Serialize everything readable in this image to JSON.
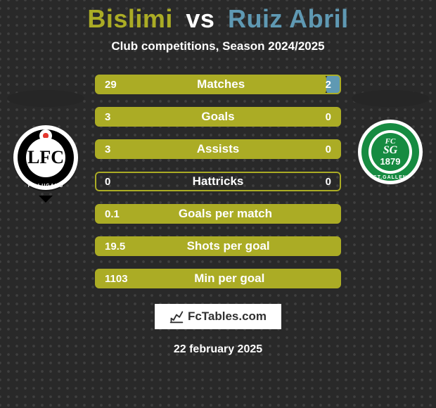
{
  "header": {
    "player1": "Bislimi",
    "vs": "vs",
    "player2": "Ruiz Abril",
    "subtitle": "Club competitions, Season 2024/2025"
  },
  "colors": {
    "player1": "#abac25",
    "player2": "#5f99b3",
    "bar_border": "#abac25",
    "background": "#292929",
    "dot": "#3f3f3f"
  },
  "club_left": {
    "name": "FC LUGANO",
    "year": "1908",
    "monogram": "LFC"
  },
  "club_right": {
    "name": "ST.GALLEN",
    "abbr_top": "FC",
    "abbr_mid": "SG",
    "year": "1879"
  },
  "stats": [
    {
      "label": "Matches",
      "left_val": "29",
      "right_val": "2",
      "left_pct": 94,
      "right_pct": 6
    },
    {
      "label": "Goals",
      "left_val": "3",
      "right_val": "0",
      "left_pct": 100,
      "right_pct": 0
    },
    {
      "label": "Assists",
      "left_val": "3",
      "right_val": "0",
      "left_pct": 100,
      "right_pct": 0
    },
    {
      "label": "Hattricks",
      "left_val": "0",
      "right_val": "0",
      "left_pct": 0,
      "right_pct": 0
    },
    {
      "label": "Goals per match",
      "left_val": "0.1",
      "right_val": "",
      "left_pct": 100,
      "right_pct": 0
    },
    {
      "label": "Shots per goal",
      "left_val": "19.5",
      "right_val": "",
      "left_pct": 100,
      "right_pct": 0
    },
    {
      "label": "Min per goal",
      "left_val": "1103",
      "right_val": "",
      "left_pct": 100,
      "right_pct": 0
    }
  ],
  "brand": {
    "text": "FcTables.com"
  },
  "date": "22 february 2025"
}
